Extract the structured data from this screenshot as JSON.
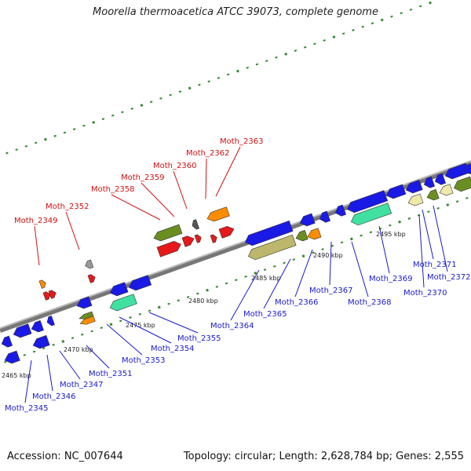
{
  "title": "Moorella thermoacetica ATCC 39073, complete genome",
  "footer": {
    "accession": "Accession: NC_007644",
    "info": "Topology: circular; Length: 2,628,784 bp; Genes: 2,555"
  },
  "colors": {
    "backbone": "#8a8a8a",
    "forward_label": "#d01010",
    "reverse_label": "#1a1acc",
    "gene_blue": "#1a1ae6",
    "gene_red": "#e61a1a",
    "gene_orange": "#ff8c00",
    "gene_olive": "#6b8e23",
    "gene_khaki": "#bdb76b",
    "gene_khaki_light": "#eee8aa",
    "gene_aqua": "#40e0a0",
    "gene_grey": "#999999",
    "tick_green": "#2e8b2e"
  },
  "scale_labels": [
    "2465 kbp",
    "2470 kbp",
    "2475 kbp",
    "2480 kbp",
    "2485 kbp",
    "2490 kbp",
    "2495 kbp"
  ],
  "forward_genes": [
    "Moth_2349",
    "Moth_2352",
    "Moth_2358",
    "Moth_2359",
    "Moth_2360",
    "Moth_2362",
    "Moth_2363"
  ],
  "reverse_genes": [
    "Moth_2345",
    "Moth_2346",
    "Moth_2347",
    "Moth_2351",
    "Moth_2353",
    "Moth_2354",
    "Moth_2355",
    "Moth_2364",
    "Moth_2365",
    "Moth_2366",
    "Moth_2367",
    "Moth_2368",
    "Moth_2369",
    "Moth_2370",
    "Moth_2371",
    "Moth_2372"
  ]
}
